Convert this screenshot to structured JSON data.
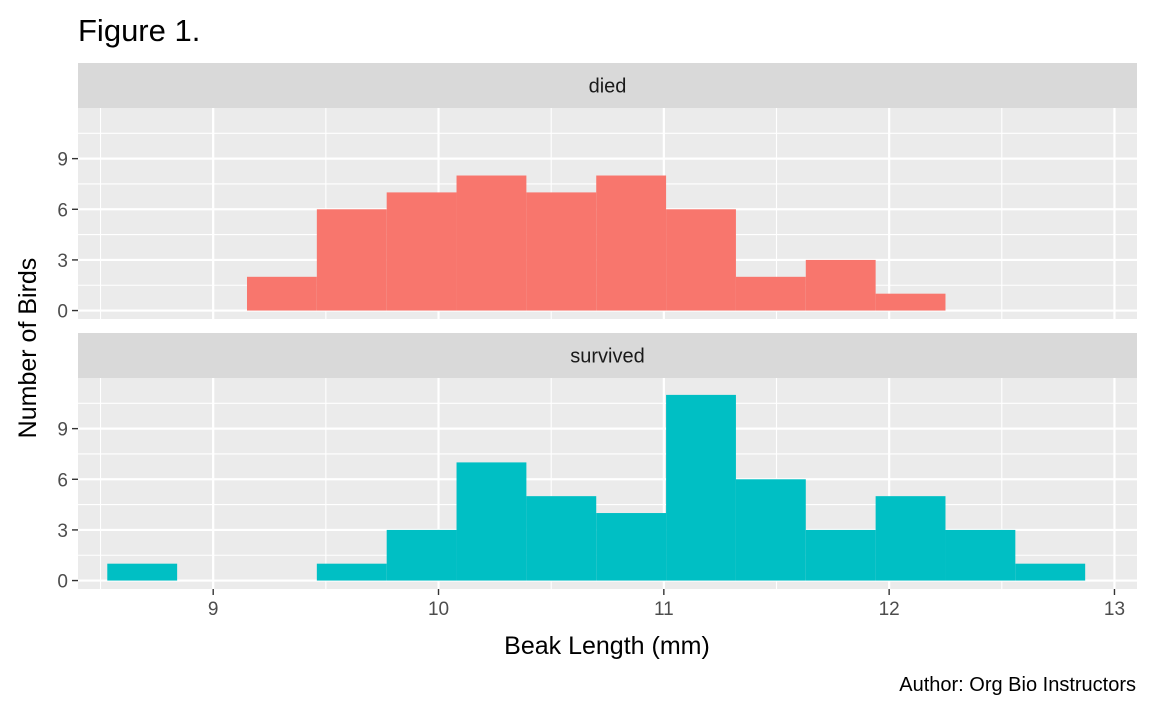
{
  "chart_data": {
    "type": "bar",
    "title": "Figure 1.",
    "xlabel": "Beak Length (mm)",
    "ylabel": "Number of Birds",
    "caption": "Author: Org Bio Instructors",
    "xlim": [
      8.4,
      13.1
    ],
    "ylim": [
      -0.5,
      12
    ],
    "x_ticks": [
      9,
      10,
      11,
      12,
      13
    ],
    "y_ticks": [
      0,
      3,
      6,
      9
    ],
    "grid": true,
    "legend": "none",
    "panels": [
      {
        "label": "died",
        "color": "#F8766D",
        "bins": [
          {
            "x0": 9.15,
            "x1": 9.46,
            "count": 2
          },
          {
            "x0": 9.46,
            "x1": 9.77,
            "count": 6
          },
          {
            "x0": 9.77,
            "x1": 10.08,
            "count": 7
          },
          {
            "x0": 10.08,
            "x1": 10.39,
            "count": 8
          },
          {
            "x0": 10.39,
            "x1": 10.7,
            "count": 7
          },
          {
            "x0": 10.7,
            "x1": 11.01,
            "count": 8
          },
          {
            "x0": 11.01,
            "x1": 11.32,
            "count": 6
          },
          {
            "x0": 11.32,
            "x1": 11.63,
            "count": 2
          },
          {
            "x0": 11.63,
            "x1": 11.94,
            "count": 3
          },
          {
            "x0": 11.94,
            "x1": 12.25,
            "count": 1
          }
        ]
      },
      {
        "label": "survived",
        "color": "#00BFC4",
        "bins": [
          {
            "x0": 8.53,
            "x1": 8.84,
            "count": 1
          },
          {
            "x0": 9.46,
            "x1": 9.77,
            "count": 1
          },
          {
            "x0": 9.77,
            "x1": 10.08,
            "count": 3
          },
          {
            "x0": 10.08,
            "x1": 10.39,
            "count": 7
          },
          {
            "x0": 10.39,
            "x1": 10.7,
            "count": 5
          },
          {
            "x0": 10.7,
            "x1": 11.01,
            "count": 4
          },
          {
            "x0": 11.01,
            "x1": 11.32,
            "count": 11
          },
          {
            "x0": 11.32,
            "x1": 11.63,
            "count": 6
          },
          {
            "x0": 11.63,
            "x1": 11.94,
            "count": 3
          },
          {
            "x0": 11.94,
            "x1": 12.25,
            "count": 5
          },
          {
            "x0": 12.25,
            "x1": 12.56,
            "count": 3
          },
          {
            "x0": 12.56,
            "x1": 12.87,
            "count": 1
          }
        ]
      }
    ]
  },
  "colors": {
    "panel_bg": "#EBEBEB",
    "strip_bg": "#D9D9D9",
    "grid_major": "#FFFFFF",
    "tick": "#333333"
  }
}
